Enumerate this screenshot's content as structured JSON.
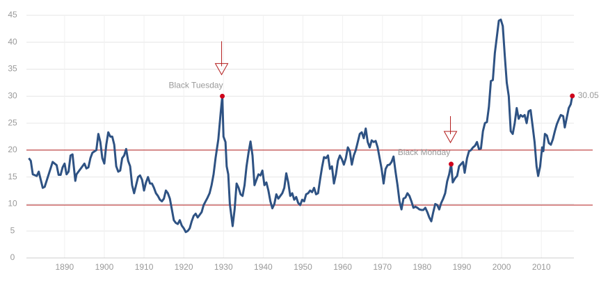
{
  "chart_data": {
    "type": "line",
    "xlim": [
      1880.4,
      2018.2
    ],
    "xticks": [
      1890,
      1900,
      1910,
      1920,
      1930,
      1940,
      1950,
      1960,
      1970,
      1980,
      1990,
      2000,
      2010
    ],
    "ylim": [
      0,
      45
    ],
    "yticks": [
      0,
      5,
      10,
      15,
      20,
      25,
      30,
      35,
      40,
      45
    ],
    "grid": true,
    "hlines": [
      {
        "value": 20,
        "color": "#b31b1b"
      },
      {
        "value": 9.8,
        "color": "#b31b1b"
      }
    ],
    "series": [
      {
        "color": "#2e5283",
        "x": [
          1881,
          1881.5,
          1882,
          1883,
          1883.5,
          1884,
          1884.5,
          1885,
          1886,
          1887,
          1888,
          1888.5,
          1889,
          1889.5,
          1890,
          1890.5,
          1891,
          1891.5,
          1892,
          1892.7,
          1893,
          1894,
          1895,
          1895.5,
          1896,
          1896.5,
          1897,
          1898,
          1898.5,
          1899,
          1899.5,
          1900,
          1900.5,
          1901,
          1901.5,
          1902,
          1902.5,
          1903,
          1903.5,
          1904,
          1904.5,
          1905,
          1905.5,
          1906,
          1906.5,
          1907,
          1907.5,
          1908,
          1908.5,
          1909,
          1909.5,
          1910,
          1910.5,
          1911,
          1911.5,
          1912,
          1912.5,
          1913,
          1913.5,
          1914,
          1914.5,
          1915,
          1915.5,
          1916,
          1916.5,
          1917,
          1917.5,
          1918,
          1918.5,
          1919,
          1919.5,
          1920,
          1920.5,
          1921,
          1921.5,
          1922,
          1922.5,
          1923,
          1923.5,
          1924,
          1924.5,
          1925,
          1925.5,
          1926,
          1926.5,
          1927,
          1927.5,
          1928,
          1928.7,
          1929.3,
          1929.7,
          1930,
          1930.5,
          1930.8,
          1931.2,
          1931.6,
          1932.3,
          1932.8,
          1933.3,
          1933.8,
          1934.3,
          1934.8,
          1935.3,
          1935.8,
          1936.3,
          1936.8,
          1937.3,
          1937.8,
          1938.3,
          1938.8,
          1939.3,
          1939.8,
          1940.3,
          1940.8,
          1941.3,
          1941.8,
          1942.3,
          1942.8,
          1943.3,
          1943.8,
          1944.3,
          1944.8,
          1945.3,
          1945.8,
          1946.3,
          1946.8,
          1947.3,
          1947.8,
          1948.3,
          1948.8,
          1949.3,
          1949.8,
          1950.3,
          1950.8,
          1951.3,
          1951.8,
          1952.3,
          1952.8,
          1953.3,
          1953.8,
          1954.3,
          1954.8,
          1955.3,
          1955.8,
          1956.3,
          1956.8,
          1957.3,
          1957.8,
          1958.3,
          1958.8,
          1959.3,
          1959.8,
          1960.3,
          1960.8,
          1961.3,
          1961.8,
          1962.3,
          1962.8,
          1963.3,
          1963.8,
          1964.3,
          1964.8,
          1965.3,
          1965.8,
          1966.3,
          1966.8,
          1967.3,
          1967.8,
          1968.3,
          1968.8,
          1969.3,
          1969.8,
          1970.3,
          1970.8,
          1971.3,
          1971.8,
          1972.3,
          1972.8,
          1973.3,
          1973.8,
          1974.3,
          1974.8,
          1975.3,
          1975.8,
          1976.3,
          1976.8,
          1977.3,
          1977.8,
          1978.3,
          1978.8,
          1979.3,
          1979.8,
          1980.3,
          1980.8,
          1981.3,
          1981.8,
          1982.3,
          1982.8,
          1983.3,
          1983.8,
          1984.3,
          1984.8,
          1985.3,
          1985.8,
          1986.3,
          1986.8,
          1987.3,
          1987.7,
          1988.3,
          1988.8,
          1989.3,
          1989.8,
          1990.3,
          1990.7,
          1991.3,
          1991.8,
          1992.3,
          1992.8,
          1993.3,
          1993.8,
          1994.3,
          1994.8,
          1995.3,
          1995.8,
          1996.3,
          1996.8,
          1997.3,
          1997.8,
          1998.3,
          1998.8,
          1999.3,
          1999.8,
          2000.3,
          2000.8,
          2001.3,
          2001.8,
          2002.3,
          2002.8,
          2003.3,
          2003.8,
          2004.3,
          2004.8,
          2005.3,
          2005.8,
          2006.3,
          2006.8,
          2007.3,
          2007.8,
          2008.3,
          2008.8,
          2009.2,
          2009.7,
          2010.2,
          2010.5,
          2010.9,
          2011.4,
          2011.9,
          2012.4,
          2012.9,
          2013.4,
          2013.9,
          2014.4,
          2014.9,
          2015.5,
          2015.9,
          2016.4,
          2016.9,
          2017.4,
          2017.8
        ],
        "values": [
          18.5,
          18,
          15.5,
          15.2,
          16,
          14.5,
          13,
          13.2,
          15.5,
          17.8,
          17.2,
          15.4,
          15.4,
          16.8,
          17.5,
          15.5,
          16,
          19,
          19.2,
          14.3,
          15.5,
          16.5,
          17.5,
          16.6,
          16.8,
          18.5,
          19.5,
          20,
          23,
          21.5,
          18.5,
          17.5,
          21,
          23.3,
          22.5,
          22.5,
          21,
          17,
          16,
          16.2,
          18.5,
          19,
          20.2,
          18,
          17,
          13.5,
          12,
          13.5,
          15,
          15.3,
          14.5,
          12.5,
          14,
          15,
          13.8,
          13.8,
          13,
          12,
          11.5,
          10.8,
          10.5,
          11,
          12.5,
          12,
          11,
          9,
          7,
          6.5,
          6.3,
          7,
          6,
          5.5,
          4.8,
          5,
          5.5,
          6.8,
          7.8,
          8.2,
          7.5,
          8,
          8.5,
          9.8,
          10.5,
          11.2,
          12,
          13.5,
          15.5,
          18.5,
          22,
          27,
          30,
          22.5,
          21.5,
          17,
          15.5,
          10,
          5.9,
          9,
          13.8,
          13,
          11.8,
          11.5,
          13.5,
          17,
          19.5,
          21.6,
          19,
          13.5,
          14.5,
          15.5,
          15.3,
          16.2,
          13.5,
          14,
          12.5,
          10.5,
          9.2,
          10,
          11.8,
          11,
          11.5,
          12,
          13,
          15.7,
          14,
          11.5,
          12,
          10.8,
          11.3,
          10.2,
          9.8,
          10.8,
          10.5,
          11.8,
          12,
          12.5,
          12.2,
          13,
          11.8,
          12,
          14.5,
          16.8,
          18.7,
          18.5,
          19,
          16.5,
          17,
          13.8,
          15.5,
          18,
          19,
          18.3,
          17.3,
          18.5,
          20.5,
          19.8,
          17.3,
          19,
          20,
          21.5,
          23,
          23.3,
          22.2,
          24,
          21.5,
          20.5,
          21.8,
          21.5,
          21.7,
          20.5,
          18.5,
          16.5,
          13.8,
          16.5,
          17.2,
          17.3,
          17.8,
          18.8,
          16,
          13.5,
          10.5,
          9,
          11,
          11.2,
          12,
          11.5,
          10.5,
          9.3,
          9.5,
          9.3,
          9,
          8.9,
          8.9,
          9.3,
          8.5,
          7.5,
          6.8,
          8.5,
          10,
          9.8,
          9,
          10.2,
          11,
          12,
          14.2,
          15.5,
          17.4,
          14,
          14.8,
          15.2,
          17,
          17.4,
          17.8,
          15.8,
          18.5,
          19.8,
          20,
          20.5,
          20.8,
          21.5,
          20.2,
          20.3,
          23.5,
          25,
          25.2,
          28,
          32.8,
          33,
          38,
          41,
          44,
          44.2,
          43,
          37.5,
          32.5,
          30,
          23.5,
          23,
          25,
          27.8,
          25.8,
          26.5,
          26.2,
          26.5,
          25,
          27.2,
          27.4,
          24.5,
          21.5,
          17,
          15.2,
          17,
          20.5,
          19.8,
          23,
          22.7,
          21.3,
          21,
          22,
          23.5,
          24.8,
          25.7,
          26.5,
          26.3,
          24.2,
          26,
          27.8,
          28.5,
          30.05
        ]
      }
    ],
    "annotations": [
      {
        "text": "Black Tuesday",
        "x": 1929.7,
        "y": 30,
        "color": "#d0021b"
      },
      {
        "text": "Black Monday",
        "x": 1987.3,
        "y": 17.4,
        "color": "#d0021b"
      },
      {
        "x": 2017.8,
        "y": 30.05,
        "color": "#d0021b"
      }
    ]
  }
}
